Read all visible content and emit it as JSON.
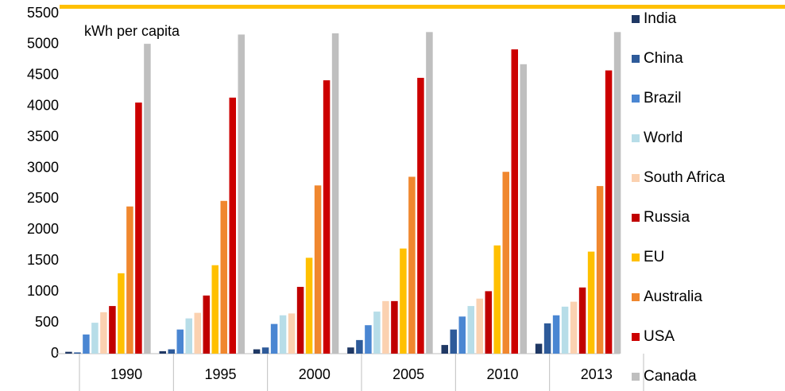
{
  "chart_data": {
    "type": "bar",
    "annotation": "kWh per capita",
    "categories": [
      "1990",
      "1995",
      "2000",
      "2005",
      "2010",
      "2013"
    ],
    "series": [
      {
        "name": "India",
        "color": "#1f3864",
        "values": [
          30,
          40,
          70,
          100,
          140,
          160
        ]
      },
      {
        "name": "China",
        "color": "#2e5b9a",
        "values": [
          20,
          70,
          100,
          220,
          390,
          490
        ]
      },
      {
        "name": "Brazil",
        "color": "#4a86d2",
        "values": [
          310,
          390,
          480,
          460,
          600,
          620
        ]
      },
      {
        "name": "World",
        "color": "#b7dde8",
        "values": [
          500,
          570,
          620,
          680,
          770,
          760
        ]
      },
      {
        "name": "South Africa",
        "color": "#fbd1b0",
        "values": [
          670,
          660,
          650,
          850,
          890,
          840
        ]
      },
      {
        "name": "Russia",
        "color": "#c00000",
        "values": [
          770,
          940,
          1080,
          850,
          1010,
          1070
        ]
      },
      {
        "name": "EU",
        "color": "#ffc000",
        "values": [
          1300,
          1430,
          1550,
          1700,
          1750,
          1650
        ]
      },
      {
        "name": "Australia",
        "color": "#f0872e",
        "values": [
          2380,
          2470,
          2720,
          2860,
          2940,
          2710
        ]
      },
      {
        "name": "USA",
        "color": "#cc0000",
        "values": [
          4060,
          4140,
          4420,
          4460,
          4920,
          4580
        ]
      },
      {
        "name": "Canada",
        "color": "#bfbfbf",
        "values": [
          5010,
          5160,
          5180,
          5200,
          4680,
          5200
        ]
      }
    ],
    "ylim": [
      0,
      5500
    ],
    "yticks": [
      0,
      500,
      1000,
      1500,
      2000,
      2500,
      3000,
      3500,
      4000,
      4500,
      5000,
      5500
    ],
    "legend": "right"
  }
}
